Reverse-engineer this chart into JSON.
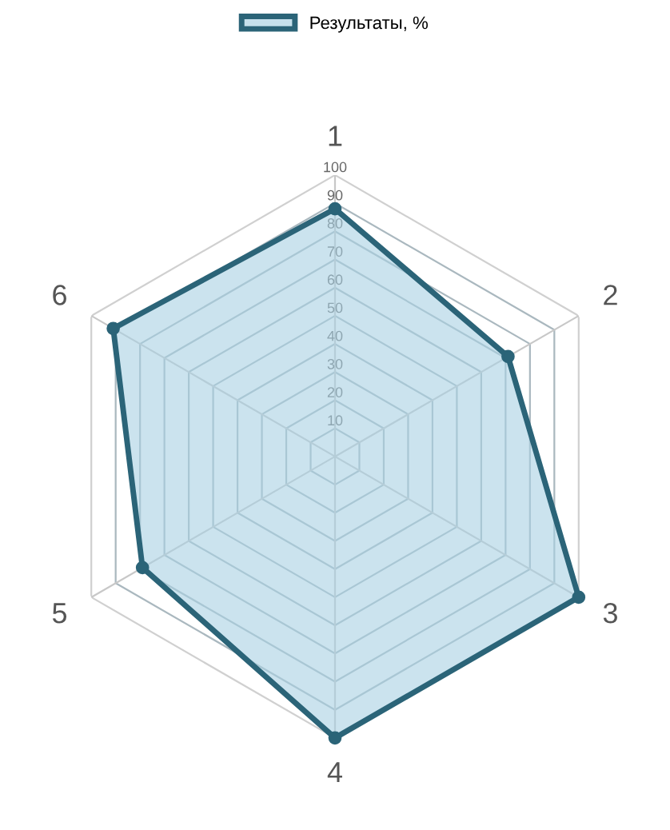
{
  "chart_data": {
    "type": "radar",
    "categories": [
      "1",
      "2",
      "3",
      "4",
      "5",
      "6"
    ],
    "series": [
      {
        "name": "Результаты, %",
        "color": "#2b6478",
        "values": [
          88,
          71,
          100,
          100,
          79,
          91
        ]
      }
    ],
    "ylim": [
      0,
      100
    ],
    "yticks": [
      10,
      20,
      30,
      40,
      50,
      60,
      70,
      80,
      90,
      100
    ],
    "grid": true,
    "legend": "top",
    "marker": "circle"
  }
}
